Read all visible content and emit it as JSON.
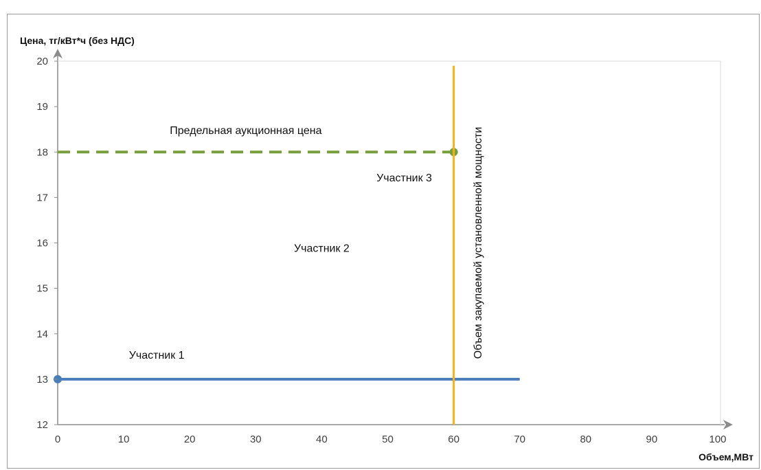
{
  "chart_data": {
    "type": "line",
    "ylabel": "Цена, тг/кВт*ч (без НДС)",
    "xlabel": "Объем,МВт",
    "xlim": [
      0,
      100
    ],
    "ylim": [
      12,
      20
    ],
    "x_ticks": [
      0,
      10,
      20,
      30,
      40,
      50,
      60,
      70,
      80,
      90,
      100
    ],
    "y_ticks": [
      12,
      13,
      14,
      15,
      16,
      17,
      18,
      19,
      20
    ],
    "grid": false,
    "series": [
      {
        "style": "solid",
        "color": "#4a7ebb",
        "points": [
          [
            0,
            13
          ],
          [
            70,
            13
          ]
        ],
        "marker_at": [
          0,
          13
        ]
      },
      {
        "style": "dashed",
        "color": "#77a03c",
        "points": [
          [
            0,
            18
          ],
          [
            60,
            18
          ]
        ],
        "marker_at": [
          60,
          18
        ]
      },
      {
        "style": "vertical",
        "color": "#f5b21a",
        "points": [
          [
            60,
            19.9
          ],
          [
            60,
            12
          ]
        ]
      }
    ],
    "annotations": [
      {
        "text": "Предельная аукционная цена",
        "x": 28.5,
        "y": 18.4,
        "rotate": false
      },
      {
        "text": "Участник 1",
        "x": 15,
        "y": 13.45,
        "rotate": false
      },
      {
        "text": "Участник 2",
        "x": 40,
        "y": 15.8,
        "rotate": false
      },
      {
        "text": "Участник 3",
        "x": 52.5,
        "y": 17.35,
        "rotate": false
      },
      {
        "text": "Объем закупаемой установленной мощности",
        "x": 64.2,
        "y": 16,
        "rotate": true
      }
    ]
  }
}
